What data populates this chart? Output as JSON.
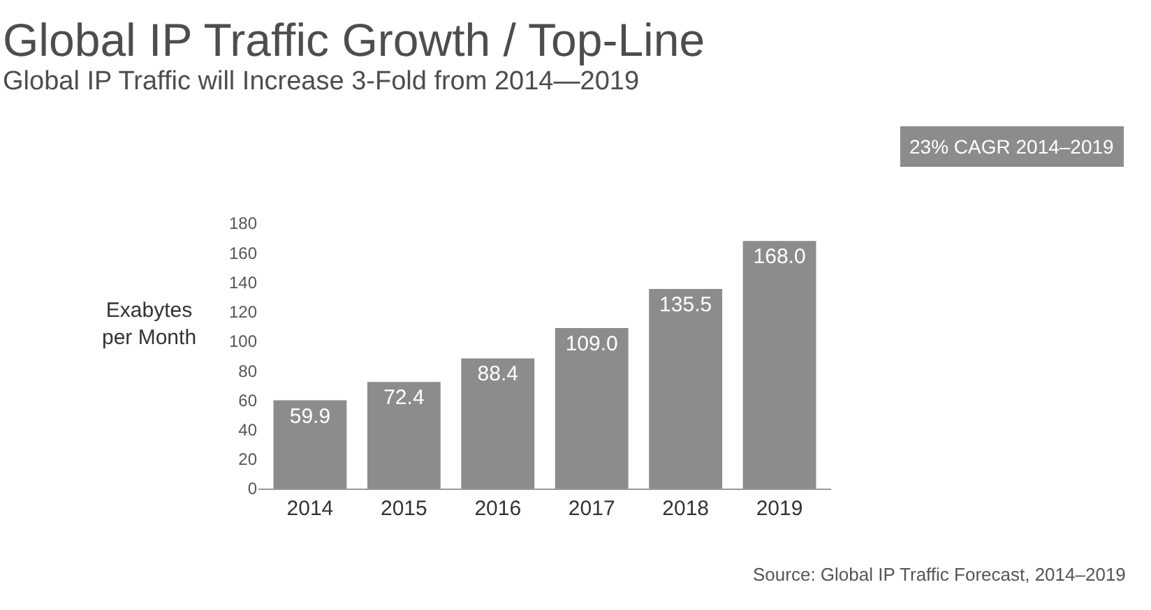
{
  "chart_data": {
    "type": "bar",
    "title": "Global IP Traffic Growth / Top-Line",
    "subtitle": "Global IP Traffic will Increase 3-Fold from 2014—2019",
    "ylabel": "Exabytes\nper Month",
    "categories": [
      "2014",
      "2015",
      "2016",
      "2017",
      "2018",
      "2019"
    ],
    "values": [
      59.9,
      72.4,
      88.4,
      109.0,
      135.5,
      168.0
    ],
    "value_labels": [
      "59.9",
      "72.4",
      "88.4",
      "109.0",
      "135.5",
      "168.0"
    ],
    "color": "#8c8c8c",
    "ylim": [
      0,
      180
    ],
    "yticks": [
      0,
      20,
      40,
      60,
      80,
      100,
      120,
      140,
      160,
      180
    ],
    "legend": false,
    "annotations": [
      "23% CAGR 2014–2019",
      "Source: Global IP Traffic Forecast, 2014–2019"
    ]
  }
}
